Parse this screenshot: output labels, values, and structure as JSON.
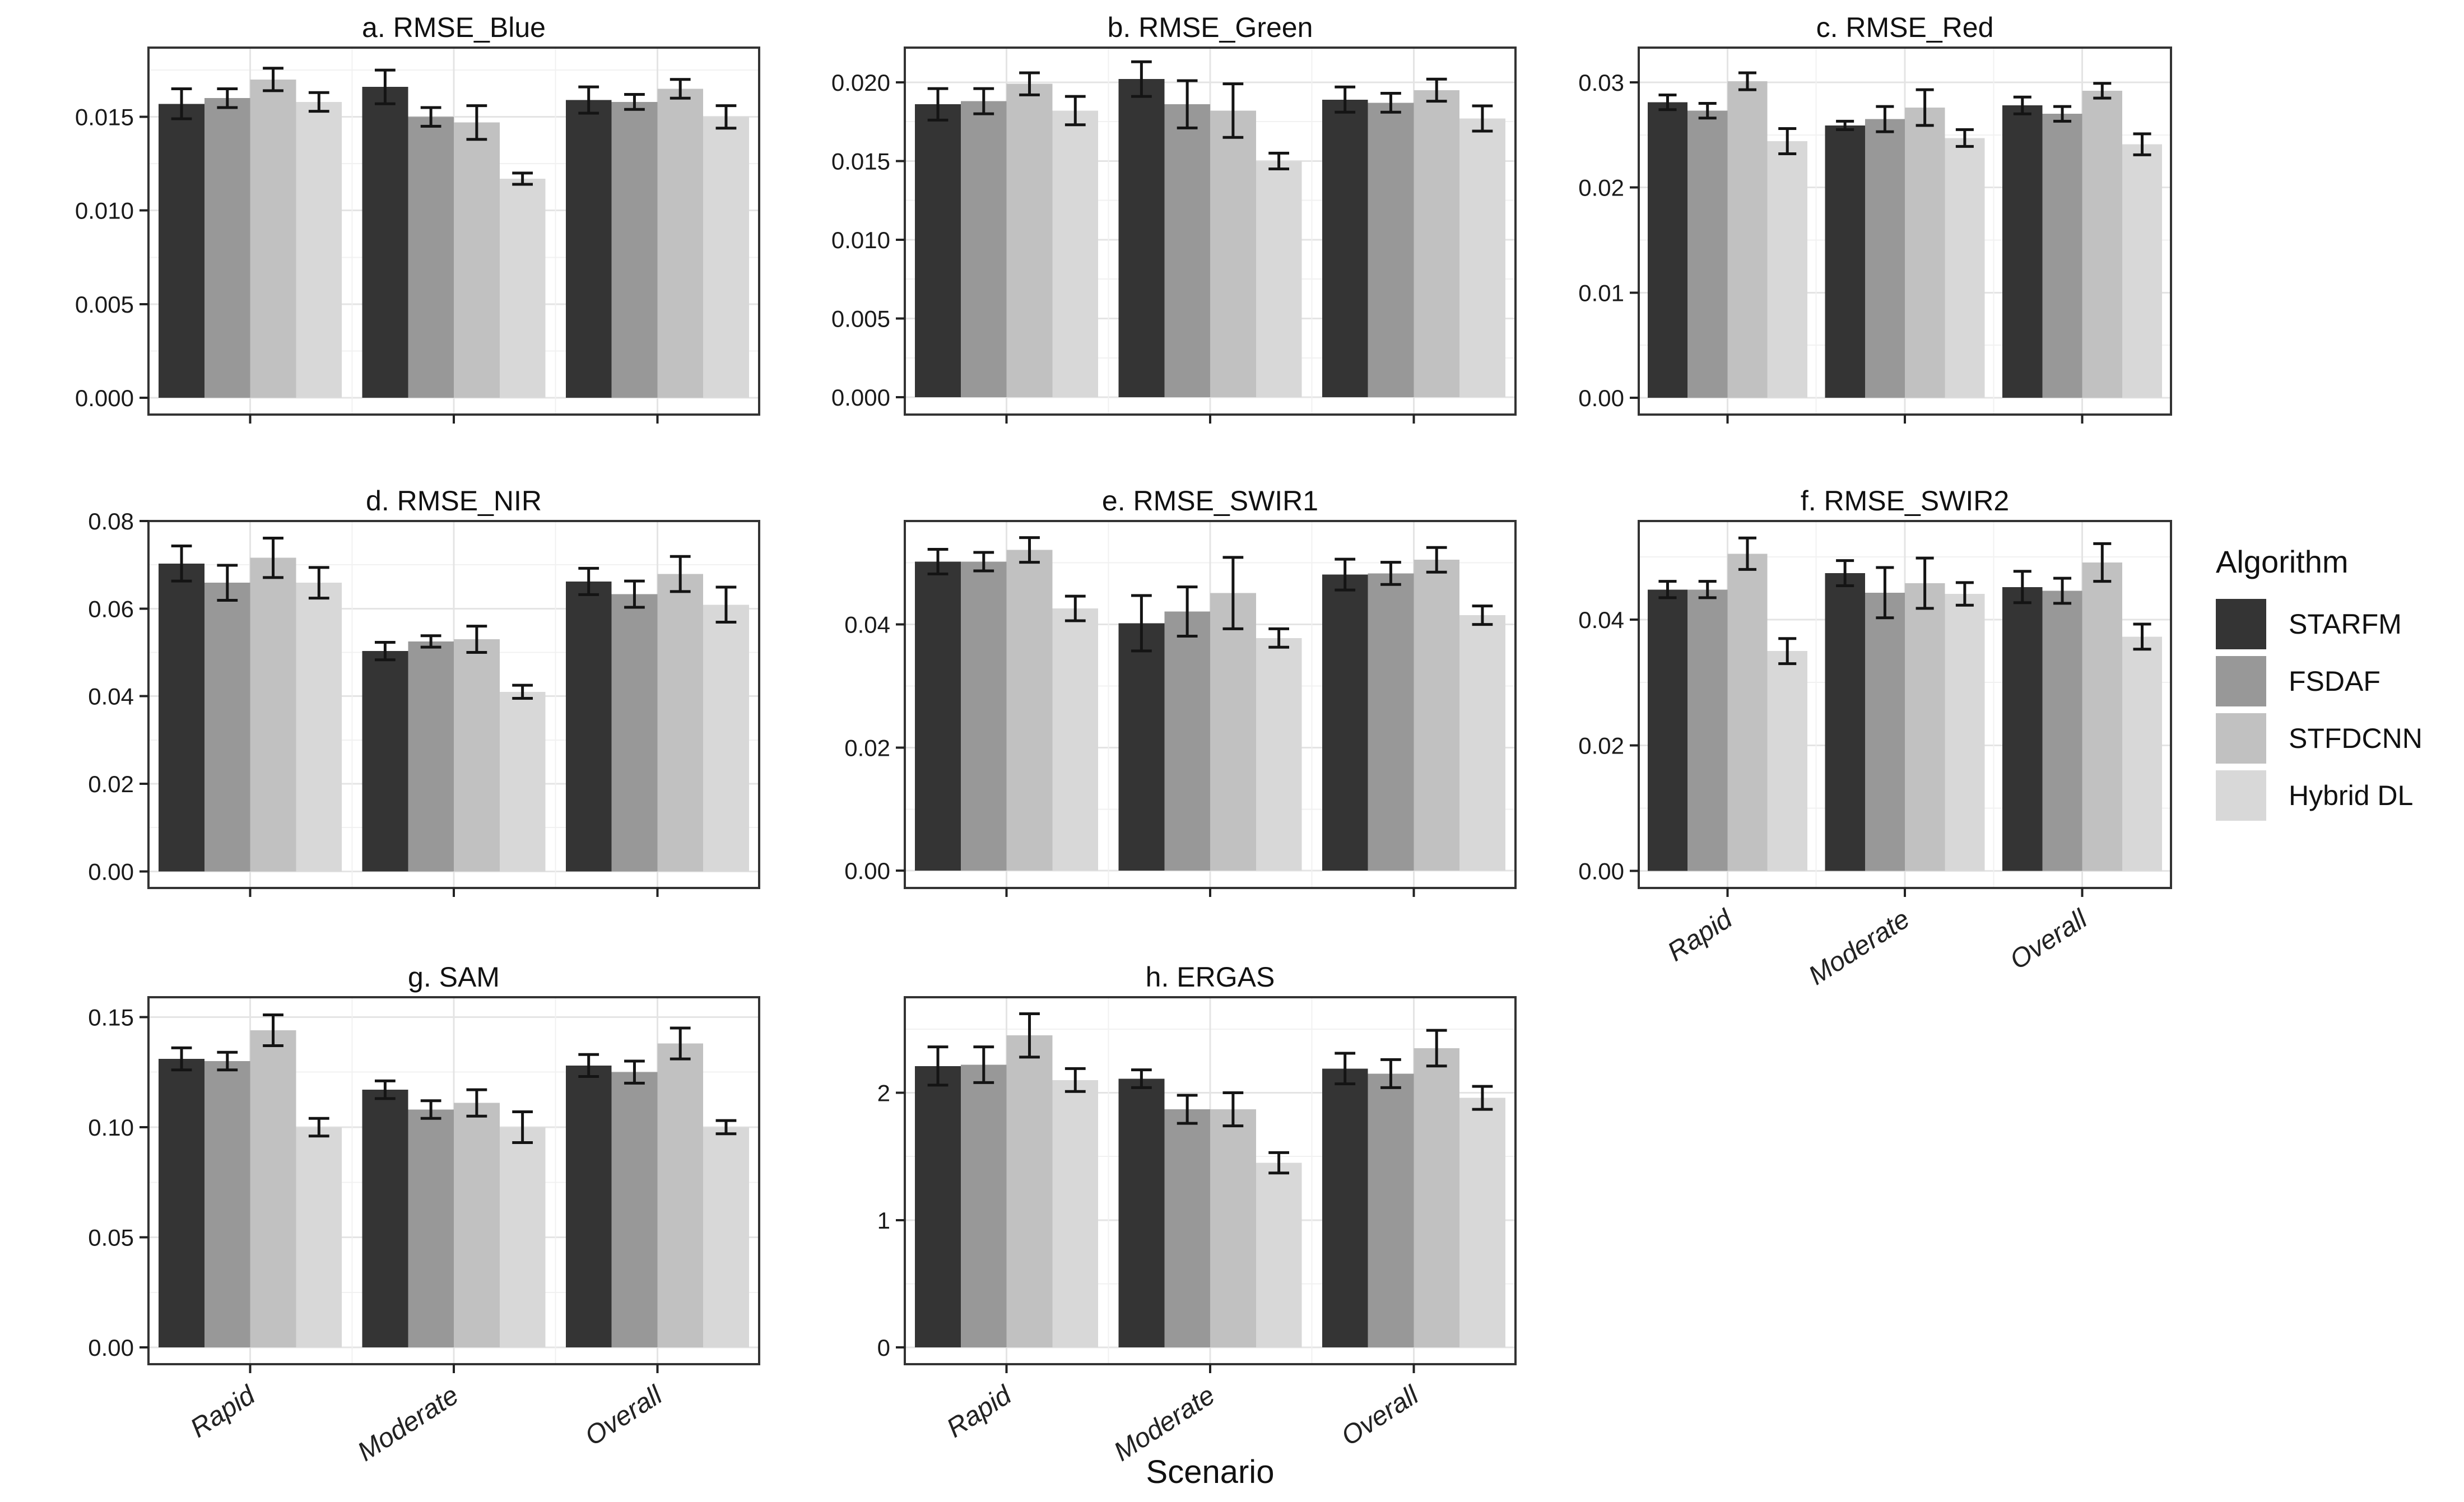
{
  "figure": {
    "xlabel": "Scenario"
  },
  "legend": {
    "title": "Algorithm",
    "entries": [
      {
        "label": "STARFM",
        "color": "#343434"
      },
      {
        "label": "FSDAF",
        "color": "#989898"
      },
      {
        "label": "STFDCNN",
        "color": "#c1c1c1"
      },
      {
        "label": "Hybrid DL",
        "color": "#d8d8d8"
      }
    ]
  },
  "scenarios": [
    "Rapid",
    "Moderate",
    "Overall"
  ],
  "algorithms": [
    "STARFM",
    "FSDAF",
    "STFDCNN",
    "Hybrid DL"
  ],
  "chart_data": [
    {
      "id": "a",
      "type": "bar",
      "title": "a. RMSE_Blue",
      "categories": [
        "Rapid",
        "Moderate",
        "Overall"
      ],
      "series": [
        {
          "name": "STARFM",
          "values": [
            0.0157,
            0.0166,
            0.0159
          ],
          "errors": [
            0.0008,
            0.0009,
            0.0007
          ]
        },
        {
          "name": "FSDAF",
          "values": [
            0.016,
            0.015,
            0.0158
          ],
          "errors": [
            0.0005,
            0.0005,
            0.0004
          ]
        },
        {
          "name": "STFDCNN",
          "values": [
            0.017,
            0.0147,
            0.0165
          ],
          "errors": [
            0.0006,
            0.0009,
            0.0005
          ]
        },
        {
          "name": "Hybrid DL",
          "values": [
            0.0158,
            0.0117,
            0.015
          ],
          "errors": [
            0.0005,
            0.0003,
            0.0006
          ]
        }
      ],
      "ylim": [
        -0.0009,
        0.0187
      ],
      "yticks": [
        0,
        0.005,
        0.01,
        0.015
      ],
      "ytick_labels": [
        "0.000",
        "0.005",
        "0.010",
        "0.015"
      ],
      "show_x_tick_labels": false
    },
    {
      "id": "b",
      "type": "bar",
      "title": "b. RMSE_Green",
      "categories": [
        "Rapid",
        "Moderate",
        "Overall"
      ],
      "series": [
        {
          "name": "STARFM",
          "values": [
            0.0186,
            0.0202,
            0.0189
          ],
          "errors": [
            0.001,
            0.0011,
            0.0008
          ]
        },
        {
          "name": "FSDAF",
          "values": [
            0.0188,
            0.0186,
            0.0187
          ],
          "errors": [
            0.0008,
            0.0015,
            0.0006
          ]
        },
        {
          "name": "STFDCNN",
          "values": [
            0.0199,
            0.0182,
            0.0195
          ],
          "errors": [
            0.0007,
            0.0017,
            0.0007
          ]
        },
        {
          "name": "Hybrid DL",
          "values": [
            0.0182,
            0.015,
            0.0177
          ],
          "errors": [
            0.0009,
            0.0005,
            0.0008
          ]
        }
      ],
      "ylim": [
        -0.0011,
        0.0222
      ],
      "yticks": [
        0,
        0.005,
        0.01,
        0.015,
        0.02
      ],
      "ytick_labels": [
        "0.000",
        "0.005",
        "0.010",
        "0.015",
        "0.020"
      ],
      "show_x_tick_labels": false
    },
    {
      "id": "c",
      "type": "bar",
      "title": "c. RMSE_Red",
      "categories": [
        "Rapid",
        "Moderate",
        "Overall"
      ],
      "series": [
        {
          "name": "STARFM",
          "values": [
            0.0281,
            0.0259,
            0.0278
          ],
          "errors": [
            0.0007,
            0.0004,
            0.0008
          ]
        },
        {
          "name": "FSDAF",
          "values": [
            0.0273,
            0.0265,
            0.027
          ],
          "errors": [
            0.0007,
            0.0012,
            0.0007
          ]
        },
        {
          "name": "STFDCNN",
          "values": [
            0.0301,
            0.0276,
            0.0292
          ],
          "errors": [
            0.0008,
            0.0017,
            0.0007
          ]
        },
        {
          "name": "Hybrid DL",
          "values": [
            0.0244,
            0.0247,
            0.0241
          ],
          "errors": [
            0.0012,
            0.0008,
            0.001
          ]
        }
      ],
      "ylim": [
        -0.0016,
        0.0333
      ],
      "yticks": [
        0,
        0.01,
        0.02,
        0.03
      ],
      "ytick_labels": [
        "0.00",
        "0.01",
        "0.02",
        "0.03"
      ],
      "show_x_tick_labels": false
    },
    {
      "id": "d",
      "type": "bar",
      "title": "d. RMSE_NIR",
      "categories": [
        "Rapid",
        "Moderate",
        "Overall"
      ],
      "series": [
        {
          "name": "STARFM",
          "values": [
            0.0703,
            0.0503,
            0.0662
          ],
          "errors": [
            0.004,
            0.002,
            0.003
          ]
        },
        {
          "name": "FSDAF",
          "values": [
            0.0659,
            0.0525,
            0.0633
          ],
          "errors": [
            0.004,
            0.0013,
            0.003
          ]
        },
        {
          "name": "STFDCNN",
          "values": [
            0.0716,
            0.053,
            0.0679
          ],
          "errors": [
            0.0045,
            0.003,
            0.004
          ]
        },
        {
          "name": "Hybrid DL",
          "values": [
            0.0659,
            0.041,
            0.0609
          ],
          "errors": [
            0.0035,
            0.0015,
            0.004
          ]
        }
      ],
      "ylim": [
        -0.0038,
        0.08
      ],
      "yticks": [
        0,
        0.02,
        0.04,
        0.06,
        0.08
      ],
      "ytick_labels": [
        "0.00",
        "0.02",
        "0.04",
        "0.06",
        "0.08"
      ],
      "show_x_tick_labels": false
    },
    {
      "id": "e",
      "type": "bar",
      "title": "e. RMSE_SWIR1",
      "categories": [
        "Rapid",
        "Moderate",
        "Overall"
      ],
      "series": [
        {
          "name": "STARFM",
          "values": [
            0.0502,
            0.0402,
            0.0481
          ],
          "errors": [
            0.002,
            0.0045,
            0.0025
          ]
        },
        {
          "name": "FSDAF",
          "values": [
            0.0502,
            0.0421,
            0.0483
          ],
          "errors": [
            0.0015,
            0.004,
            0.0018
          ]
        },
        {
          "name": "STFDCNN",
          "values": [
            0.0521,
            0.0451,
            0.0505
          ],
          "errors": [
            0.002,
            0.0058,
            0.002
          ]
        },
        {
          "name": "Hybrid DL",
          "values": [
            0.0426,
            0.0378,
            0.0415
          ],
          "errors": [
            0.002,
            0.0015,
            0.0015
          ]
        }
      ],
      "ylim": [
        -0.0028,
        0.0568
      ],
      "yticks": [
        0,
        0.02,
        0.04
      ],
      "ytick_labels": [
        "0.00",
        "0.02",
        "0.04"
      ],
      "show_x_tick_labels": false
    },
    {
      "id": "f",
      "type": "bar",
      "title": "f. RMSE_SWIR2",
      "categories": [
        "Rapid",
        "Moderate",
        "Overall"
      ],
      "series": [
        {
          "name": "STARFM",
          "values": [
            0.0448,
            0.0474,
            0.0452
          ],
          "errors": [
            0.0013,
            0.002,
            0.0025
          ]
        },
        {
          "name": "FSDAF",
          "values": [
            0.0448,
            0.0443,
            0.0446
          ],
          "errors": [
            0.0013,
            0.004,
            0.002
          ]
        },
        {
          "name": "STFDCNN",
          "values": [
            0.0505,
            0.0458,
            0.0491
          ],
          "errors": [
            0.0025,
            0.004,
            0.003
          ]
        },
        {
          "name": "Hybrid DL",
          "values": [
            0.035,
            0.0441,
            0.0373
          ],
          "errors": [
            0.002,
            0.0018,
            0.002
          ]
        }
      ],
      "ylim": [
        -0.0027,
        0.0557
      ],
      "yticks": [
        0,
        0.02,
        0.04
      ],
      "ytick_labels": [
        "0.00",
        "0.02",
        "0.04"
      ],
      "show_x_tick_labels": true
    },
    {
      "id": "g",
      "type": "bar",
      "title": "g. SAM",
      "categories": [
        "Rapid",
        "Moderate",
        "Overall"
      ],
      "series": [
        {
          "name": "STARFM",
          "values": [
            0.131,
            0.117,
            0.128
          ],
          "errors": [
            0.005,
            0.004,
            0.005
          ]
        },
        {
          "name": "FSDAF",
          "values": [
            0.13,
            0.108,
            0.125
          ],
          "errors": [
            0.004,
            0.004,
            0.005
          ]
        },
        {
          "name": "STFDCNN",
          "values": [
            0.144,
            0.111,
            0.138
          ],
          "errors": [
            0.007,
            0.006,
            0.007
          ]
        },
        {
          "name": "Hybrid DL",
          "values": [
            0.1,
            0.1,
            0.1
          ],
          "errors": [
            0.004,
            0.007,
            0.003
          ]
        }
      ],
      "ylim": [
        -0.0076,
        0.159
      ],
      "yticks": [
        0,
        0.05,
        0.1,
        0.15
      ],
      "ytick_labels": [
        "0.00",
        "0.05",
        "0.10",
        "0.15"
      ],
      "show_x_tick_labels": true
    },
    {
      "id": "h",
      "type": "bar",
      "title": "h. ERGAS",
      "categories": [
        "Rapid",
        "Moderate",
        "Overall"
      ],
      "series": [
        {
          "name": "STARFM",
          "values": [
            2.21,
            2.11,
            2.19
          ],
          "errors": [
            0.15,
            0.07,
            0.12
          ]
        },
        {
          "name": "FSDAF",
          "values": [
            2.22,
            1.87,
            2.15
          ],
          "errors": [
            0.14,
            0.11,
            0.11
          ]
        },
        {
          "name": "STFDCNN",
          "values": [
            2.45,
            1.87,
            2.35
          ],
          "errors": [
            0.17,
            0.13,
            0.14
          ]
        },
        {
          "name": "Hybrid DL",
          "values": [
            2.1,
            1.45,
            1.96
          ],
          "errors": [
            0.09,
            0.08,
            0.09
          ]
        }
      ],
      "ylim": [
        -0.131,
        2.75
      ],
      "yticks": [
        0,
        1,
        2
      ],
      "ytick_labels": [
        "0",
        "1",
        "2"
      ],
      "show_x_tick_labels": true
    }
  ]
}
